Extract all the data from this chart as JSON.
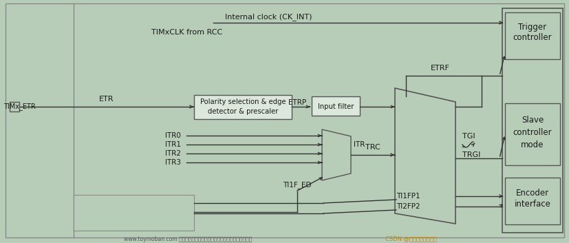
{
  "bg_color": "#b8cdb8",
  "fig_width": 8.28,
  "fig_height": 3.53,
  "dpi": 100,
  "tc": "#1a1a1a",
  "ac": "#333333",
  "box_fc": "#dce8dc",
  "box_ec": "#555555",
  "title_text": "Internal clock (CK_INT)",
  "subtitle_text": "TIMxCLK from RCC",
  "timx_etr_label": "TIMx_ETR",
  "etr_label": "ETR",
  "polarity_lines": [
    "Polarity selection & edge",
    "detector & prescaler"
  ],
  "etrp_label": "ETRP",
  "input_filter_label": "Input filter",
  "etrf_label": "ETRF",
  "itr_labels": [
    "ITR0",
    "ITR1",
    "ITR2",
    "ITR3"
  ],
  "itr_out_label": "ITR",
  "ti1f_ed_label": "TI1F_ED",
  "trc_label": "TRC",
  "tgi_label": "TGI",
  "trgi_label": "TRGI",
  "ti1fp1_label": "TI1FP1",
  "ti2fp2_label": "TI2FP2",
  "trigger_ctrl_text": [
    "Trigger",
    "controller"
  ],
  "slave_ctrl_text": [
    "Slave",
    "controller",
    "mode"
  ],
  "encoder_text": [
    "Encoder",
    "interface"
  ],
  "watermark": "www.toymoban.com 网络图片仅供展示，非存储，如有侵权请联系删除。",
  "watermark2": "CSDN @资深流水线工程师"
}
